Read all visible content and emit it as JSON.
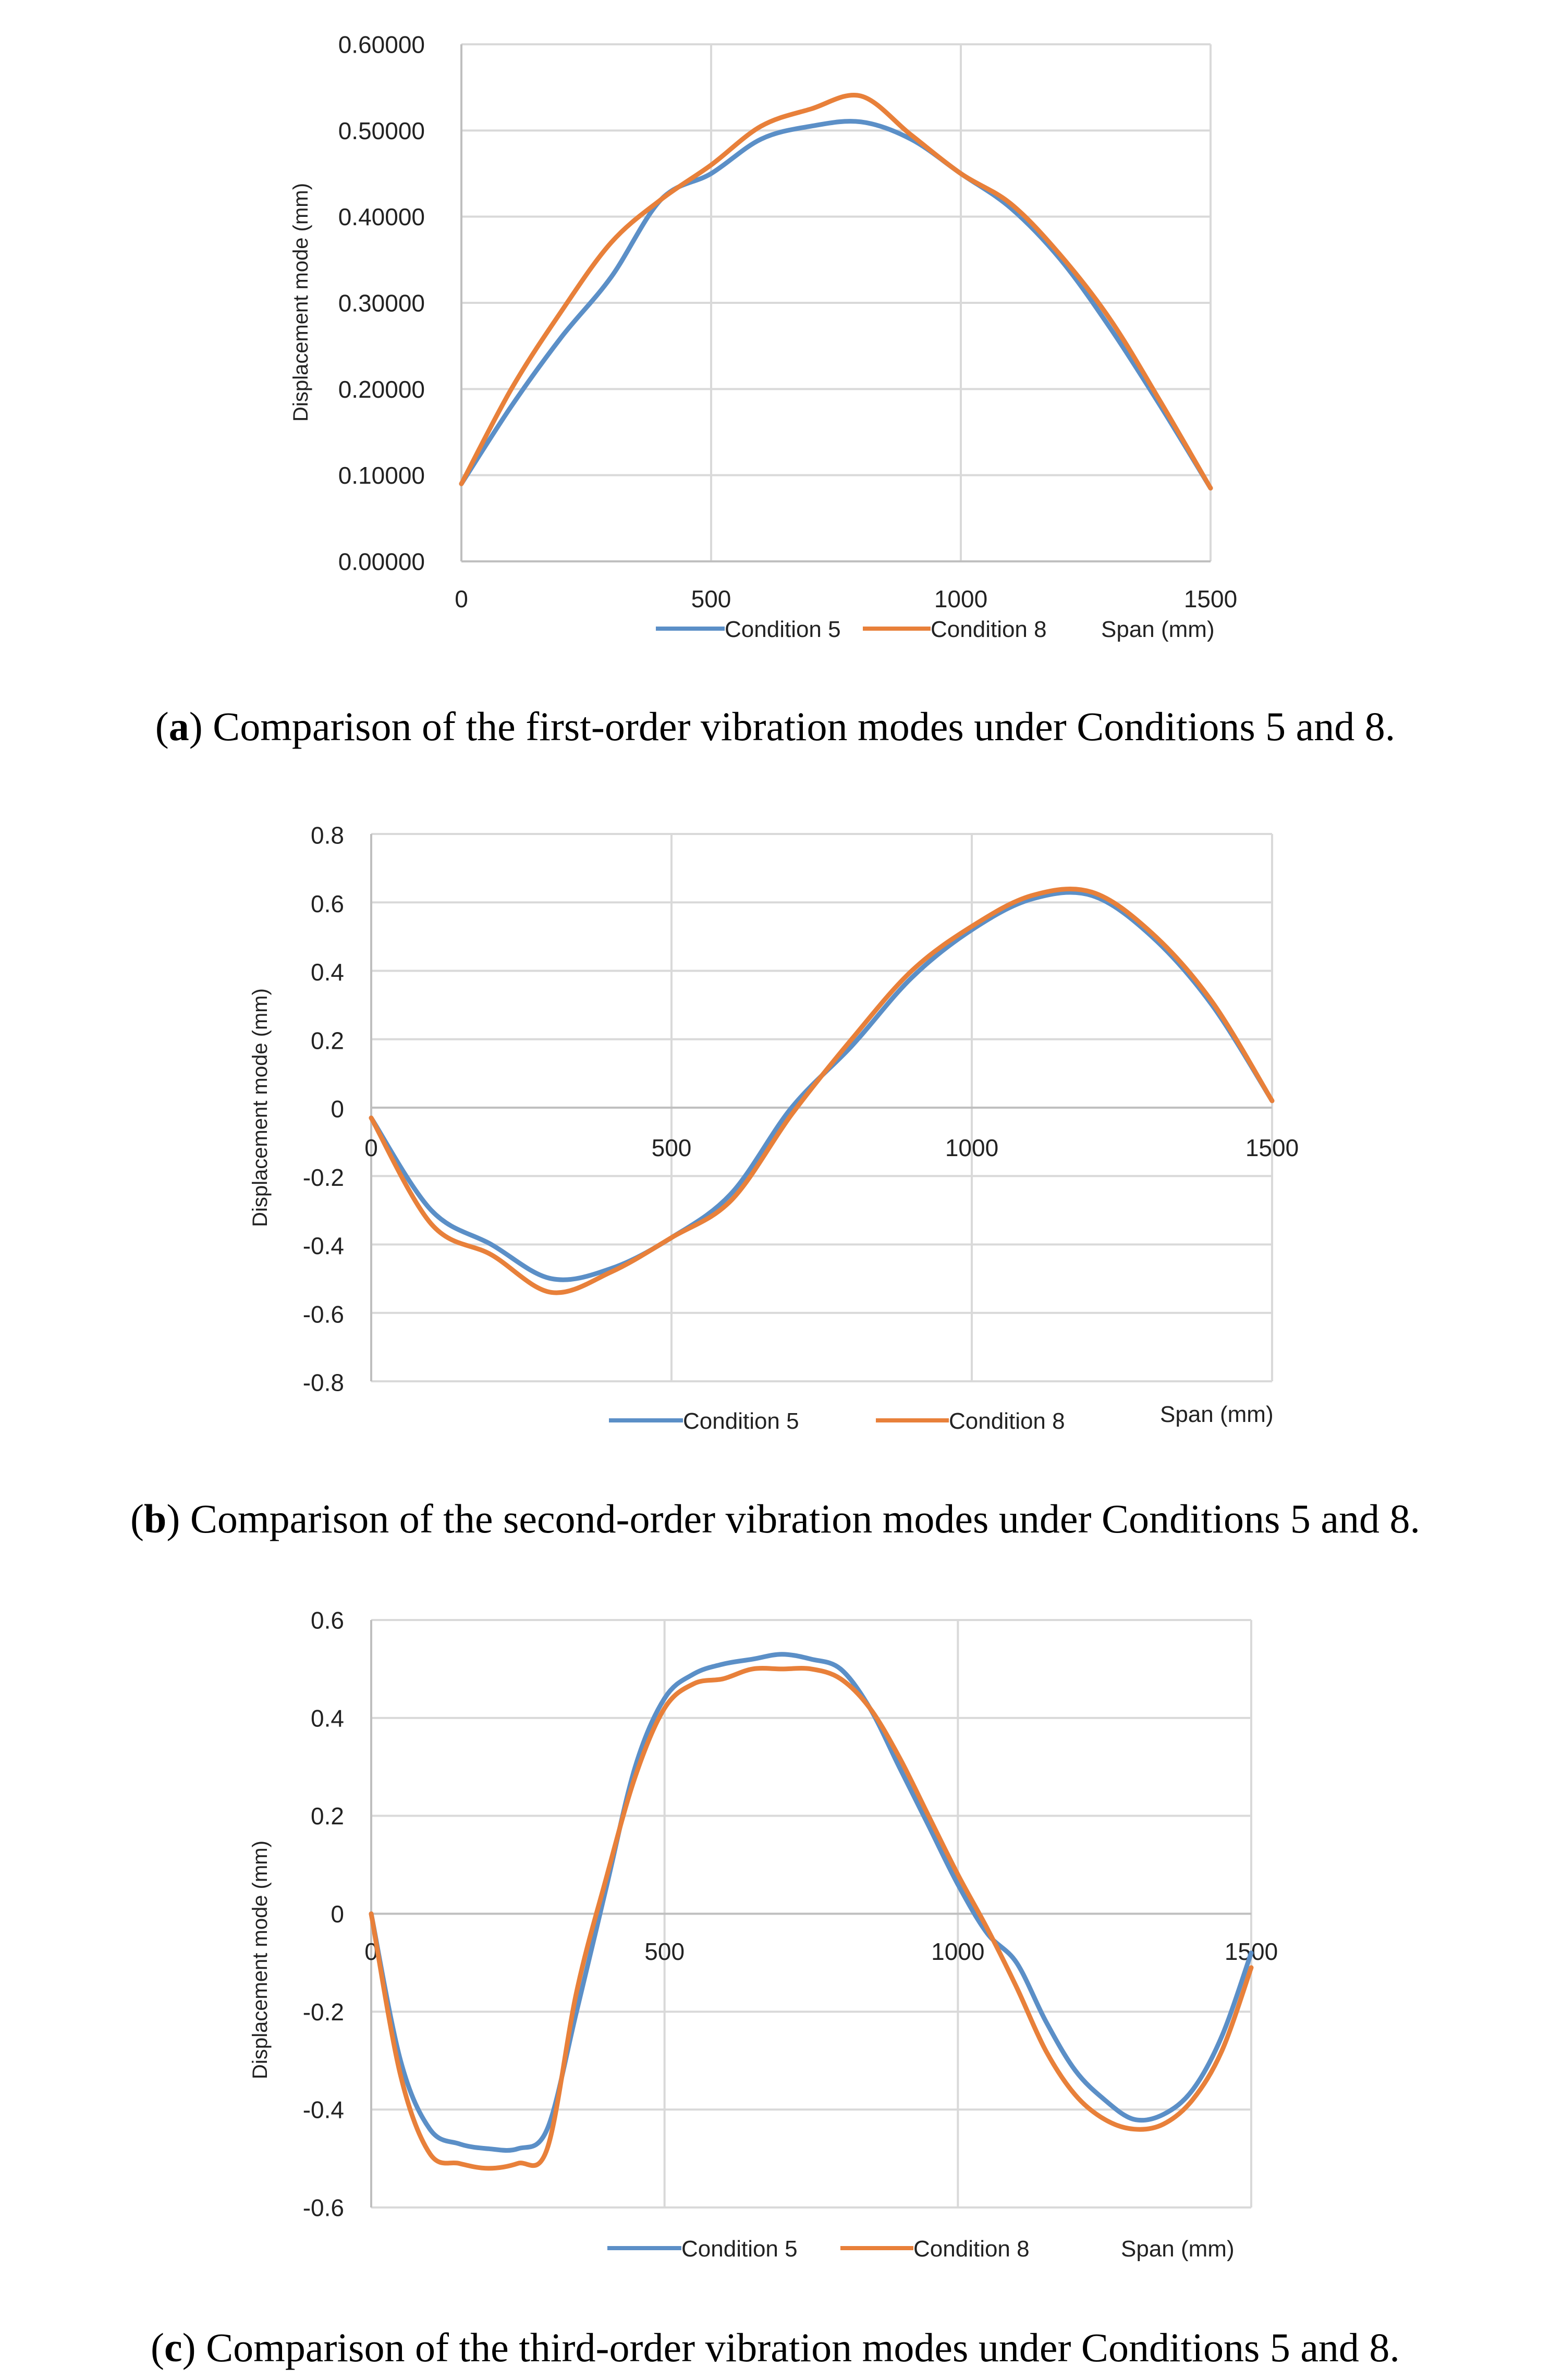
{
  "colors": {
    "condition5": "#5b8fc7",
    "condition8": "#e8803a",
    "grid": "#d9d9d9"
  },
  "chart_data": [
    {
      "type": "line",
      "panel": "a",
      "xlabel": "Span (mm)",
      "ylabel": "Displacement mode (mm)",
      "xlim": [
        0,
        1500
      ],
      "ylim": [
        0,
        0.6
      ],
      "x_ticks": [
        "0",
        "500",
        "1000",
        "1500"
      ],
      "y_ticks": [
        "0.00000",
        "0.10000",
        "0.20000",
        "0.30000",
        "0.40000",
        "0.50000",
        "0.60000"
      ],
      "x_ticks_in_plot": false,
      "legend_position": "bottom",
      "series": [
        {
          "name": "Condition 5",
          "x": [
            0,
            100,
            200,
            300,
            400,
            500,
            600,
            700,
            800,
            900,
            1000,
            1100,
            1200,
            1300,
            1400,
            1500
          ],
          "values": [
            0.09,
            0.18,
            0.26,
            0.33,
            0.42,
            0.45,
            0.49,
            0.505,
            0.51,
            0.49,
            0.45,
            0.41,
            0.35,
            0.27,
            0.18,
            0.085
          ]
        },
        {
          "name": "Condition 8",
          "x": [
            0,
            100,
            200,
            300,
            400,
            500,
            600,
            700,
            800,
            900,
            1000,
            1100,
            1200,
            1300,
            1400,
            1500
          ],
          "values": [
            0.09,
            0.2,
            0.29,
            0.37,
            0.42,
            0.46,
            0.505,
            0.525,
            0.54,
            0.495,
            0.45,
            0.415,
            0.355,
            0.28,
            0.185,
            0.085
          ]
        }
      ]
    },
    {
      "type": "line",
      "panel": "b",
      "xlabel": "Span (mm)",
      "ylabel": "Displacement mode (mm)",
      "xlim": [
        0,
        1500
      ],
      "ylim": [
        -0.8,
        0.8
      ],
      "x_ticks": [
        "0",
        "500",
        "1000",
        "1500"
      ],
      "y_ticks": [
        "-0.8",
        "-0.6",
        "-0.4",
        "-0.2",
        "0",
        "0.2",
        "0.4",
        "0.6",
        "0.8"
      ],
      "x_ticks_in_plot": true,
      "legend_position": "bottom",
      "series": [
        {
          "name": "Condition 5",
          "x": [
            0,
            100,
            200,
            300,
            400,
            500,
            600,
            700,
            800,
            900,
            1000,
            1100,
            1200,
            1300,
            1400,
            1500
          ],
          "values": [
            -0.03,
            -0.3,
            -0.4,
            -0.5,
            -0.47,
            -0.38,
            -0.25,
            0.0,
            0.18,
            0.38,
            0.52,
            0.61,
            0.62,
            0.5,
            0.3,
            0.02
          ]
        },
        {
          "name": "Condition 8",
          "x": [
            0,
            100,
            200,
            300,
            400,
            500,
            600,
            700,
            800,
            900,
            1000,
            1100,
            1200,
            1300,
            1400,
            1500
          ],
          "values": [
            -0.03,
            -0.34,
            -0.43,
            -0.54,
            -0.48,
            -0.38,
            -0.27,
            -0.02,
            0.2,
            0.4,
            0.53,
            0.62,
            0.63,
            0.51,
            0.31,
            0.02
          ]
        }
      ]
    },
    {
      "type": "line",
      "panel": "c",
      "xlabel": "Span (mm)",
      "ylabel": "Displacement mode (mm)",
      "xlim": [
        0,
        1500
      ],
      "ylim": [
        -0.6,
        0.6
      ],
      "x_ticks": [
        "0",
        "500",
        "1000",
        "1500"
      ],
      "y_ticks": [
        "-0.6",
        "-0.4",
        "-0.2",
        "0",
        "0.2",
        "0.4",
        "0.6"
      ],
      "x_ticks_in_plot": true,
      "legend_position": "bottom",
      "series": [
        {
          "name": "Condition 5",
          "x": [
            0,
            50,
            100,
            150,
            200,
            250,
            300,
            350,
            400,
            450,
            500,
            550,
            600,
            650,
            700,
            750,
            800,
            850,
            900,
            950,
            1000,
            1050,
            1100,
            1150,
            1200,
            1250,
            1300,
            1350,
            1400,
            1450,
            1500
          ],
          "values": [
            0.0,
            -0.3,
            -0.44,
            -0.47,
            -0.48,
            -0.48,
            -0.44,
            -0.2,
            0.05,
            0.3,
            0.44,
            0.49,
            0.51,
            0.52,
            0.53,
            0.52,
            0.5,
            0.42,
            0.3,
            0.18,
            0.06,
            -0.04,
            -0.1,
            -0.22,
            -0.32,
            -0.38,
            -0.42,
            -0.41,
            -0.36,
            -0.25,
            -0.08
          ]
        },
        {
          "name": "Condition 8",
          "x": [
            0,
            50,
            100,
            150,
            200,
            250,
            300,
            350,
            400,
            450,
            500,
            550,
            600,
            650,
            700,
            750,
            800,
            850,
            900,
            950,
            1000,
            1050,
            1100,
            1150,
            1200,
            1250,
            1300,
            1350,
            1400,
            1450,
            1500
          ],
          "values": [
            0.0,
            -0.33,
            -0.49,
            -0.51,
            -0.52,
            -0.51,
            -0.48,
            -0.16,
            0.07,
            0.28,
            0.42,
            0.47,
            0.48,
            0.5,
            0.5,
            0.5,
            0.48,
            0.42,
            0.32,
            0.2,
            0.08,
            -0.03,
            -0.15,
            -0.28,
            -0.37,
            -0.42,
            -0.44,
            -0.43,
            -0.38,
            -0.28,
            -0.11
          ]
        }
      ]
    }
  ],
  "captions": [
    {
      "letter": "a",
      "open": "(",
      "close": ") Comparison of the first-order vibration modes under Conditions 5 and 8."
    },
    {
      "letter": "b",
      "open": "(",
      "close": ") Comparison of the second-order vibration modes under Conditions 5 and 8."
    },
    {
      "letter": "c",
      "open": "(",
      "close": ") Comparison of the third-order vibration modes under Conditions 5 and 8."
    }
  ]
}
